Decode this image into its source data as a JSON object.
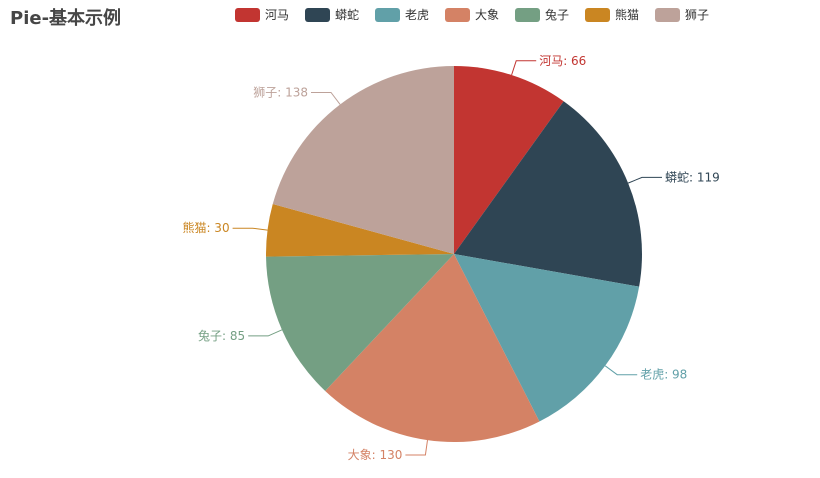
{
  "chart_data": {
    "type": "pie",
    "title": "Pie-基本示例",
    "legend_position": "top",
    "categories": [
      "河马",
      "蟒蛇",
      "老虎",
      "大象",
      "兔子",
      "熊猫",
      "狮子"
    ],
    "values": [
      66,
      119,
      98,
      130,
      85,
      30,
      138
    ],
    "colors": [
      "#c23531",
      "#2f4554",
      "#61a0a8",
      "#d48265",
      "#749f83",
      "#ca8622",
      "#bda29a"
    ],
    "labels": [
      "河马: 66",
      "蟒蛇: 119",
      "老虎: 98",
      "大象: 130",
      "兔子: 85",
      "熊猫: 30",
      "狮子: 138"
    ]
  }
}
